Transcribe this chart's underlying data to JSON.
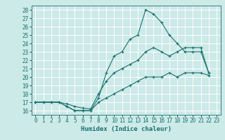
{
  "title": "",
  "xlabel": "Humidex (Indice chaleur)",
  "bg_color": "#cceae7",
  "grid_color": "#ffffff",
  "line_color": "#1a7070",
  "xlim": [
    -0.5,
    23.5
  ],
  "ylim": [
    15.5,
    28.5
  ],
  "yticks": [
    16,
    17,
    18,
    19,
    20,
    21,
    22,
    23,
    24,
    25,
    26,
    27,
    28
  ],
  "xticks": [
    0,
    1,
    2,
    3,
    4,
    5,
    6,
    7,
    8,
    9,
    10,
    11,
    12,
    13,
    14,
    15,
    16,
    17,
    18,
    19,
    20,
    21,
    22,
    23
  ],
  "line1_x": [
    0,
    1,
    2,
    3,
    4,
    5,
    6,
    7,
    8,
    9,
    10,
    11,
    12,
    13,
    14,
    15,
    16,
    17,
    18,
    19,
    20,
    21,
    22
  ],
  "line1_y": [
    17,
    17,
    17,
    17,
    16.5,
    16,
    16,
    16,
    17.5,
    20.5,
    22.5,
    23,
    24.5,
    25,
    28,
    27.5,
    26.5,
    25,
    24,
    23,
    23,
    23,
    20.5
  ],
  "line2_x": [
    0,
    1,
    2,
    3,
    4,
    5,
    6,
    7,
    8,
    9,
    10,
    11,
    12,
    13,
    14,
    15,
    16,
    17,
    18,
    19,
    20,
    21,
    22
  ],
  "line2_y": [
    17,
    17,
    17,
    17,
    16.8,
    16.5,
    16.3,
    16.2,
    18,
    19.5,
    20.5,
    21,
    21.5,
    22,
    23,
    23.5,
    23,
    22.5,
    23,
    23.5,
    23.5,
    23.5,
    20.5
  ],
  "line3_x": [
    0,
    1,
    2,
    3,
    4,
    5,
    6,
    7,
    8,
    9,
    10,
    11,
    12,
    13,
    14,
    15,
    16,
    17,
    18,
    19,
    20,
    21,
    22
  ],
  "line3_y": [
    17,
    17,
    17,
    17,
    16.5,
    16,
    16,
    16,
    17,
    17.5,
    18,
    18.5,
    19,
    19.5,
    20,
    20,
    20,
    20.5,
    20,
    20.5,
    20.5,
    20.5,
    20.2
  ],
  "xlabel_fontsize": 6.5,
  "tick_fontsize": 5.5
}
